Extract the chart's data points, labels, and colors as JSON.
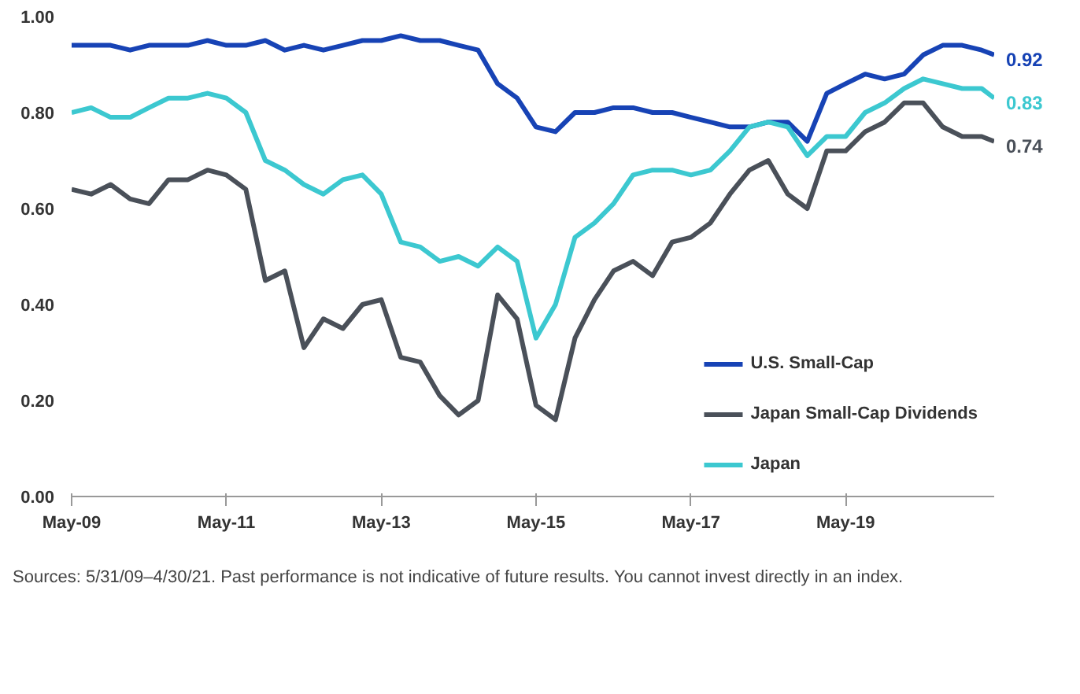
{
  "chart_data": {
    "type": "line",
    "x": [
      "2009-05",
      "2009-08",
      "2009-11",
      "2010-02",
      "2010-05",
      "2010-08",
      "2010-11",
      "2011-02",
      "2011-05",
      "2011-08",
      "2011-11",
      "2012-02",
      "2012-05",
      "2012-08",
      "2012-11",
      "2013-02",
      "2013-05",
      "2013-08",
      "2013-11",
      "2014-02",
      "2014-05",
      "2014-08",
      "2014-11",
      "2015-02",
      "2015-05",
      "2015-08",
      "2015-11",
      "2016-02",
      "2016-05",
      "2016-08",
      "2016-11",
      "2017-02",
      "2017-05",
      "2017-08",
      "2017-11",
      "2018-02",
      "2018-05",
      "2018-08",
      "2018-11",
      "2019-02",
      "2019-05",
      "2019-08",
      "2019-11",
      "2020-02",
      "2020-05",
      "2020-08",
      "2020-11",
      "2021-02",
      "2021-04"
    ],
    "series": [
      {
        "name": "U.S. Small-Cap",
        "color": "#1743b5",
        "values": [
          0.94,
          0.94,
          0.94,
          0.93,
          0.94,
          0.94,
          0.94,
          0.95,
          0.94,
          0.94,
          0.95,
          0.93,
          0.94,
          0.93,
          0.94,
          0.95,
          0.95,
          0.96,
          0.95,
          0.95,
          0.94,
          0.93,
          0.86,
          0.83,
          0.77,
          0.76,
          0.8,
          0.8,
          0.81,
          0.81,
          0.8,
          0.8,
          0.79,
          0.78,
          0.77,
          0.77,
          0.78,
          0.78,
          0.74,
          0.84,
          0.86,
          0.88,
          0.87,
          0.88,
          0.92,
          0.94,
          0.94,
          0.93,
          0.92
        ],
        "value_labels": [
          null,
          null,
          null,
          null,
          null,
          null,
          null,
          null,
          null,
          null,
          null,
          null,
          null,
          null,
          null,
          null,
          null,
          null,
          null,
          null,
          null,
          null,
          null,
          null,
          null,
          null,
          null,
          null,
          null,
          null,
          null,
          null,
          null,
          null,
          null,
          null,
          null,
          null,
          null,
          null,
          null,
          null,
          null,
          null,
          null,
          null,
          null,
          null,
          "0.92"
        ]
      },
      {
        "name": "Japan Small-Cap Dividends",
        "color": "#4a5059",
        "values": [
          0.64,
          0.63,
          0.65,
          0.62,
          0.61,
          0.66,
          0.66,
          0.68,
          0.67,
          0.64,
          0.45,
          0.47,
          0.31,
          0.37,
          0.35,
          0.4,
          0.41,
          0.29,
          0.28,
          0.21,
          0.17,
          0.2,
          0.42,
          0.37,
          0.19,
          0.16,
          0.33,
          0.41,
          0.47,
          0.49,
          0.46,
          0.53,
          0.54,
          0.57,
          0.63,
          0.68,
          0.7,
          0.63,
          0.6,
          0.72,
          0.72,
          0.76,
          0.78,
          0.82,
          0.82,
          0.77,
          0.75,
          0.75,
          0.74
        ],
        "value_labels": [
          null,
          null,
          null,
          null,
          null,
          null,
          null,
          null,
          null,
          null,
          null,
          null,
          null,
          null,
          null,
          null,
          null,
          null,
          null,
          null,
          null,
          null,
          null,
          null,
          null,
          null,
          null,
          null,
          null,
          null,
          null,
          null,
          null,
          null,
          null,
          null,
          null,
          null,
          null,
          null,
          null,
          null,
          null,
          null,
          null,
          null,
          null,
          null,
          "0.74"
        ]
      },
      {
        "name": "Japan",
        "color": "#3cc8d0",
        "values": [
          0.8,
          0.81,
          0.79,
          0.79,
          0.81,
          0.83,
          0.83,
          0.84,
          0.83,
          0.8,
          0.7,
          0.68,
          0.65,
          0.63,
          0.66,
          0.67,
          0.63,
          0.53,
          0.52,
          0.49,
          0.5,
          0.48,
          0.52,
          0.49,
          0.33,
          0.4,
          0.54,
          0.57,
          0.61,
          0.67,
          0.68,
          0.68,
          0.67,
          0.68,
          0.72,
          0.77,
          0.78,
          0.77,
          0.71,
          0.75,
          0.75,
          0.8,
          0.82,
          0.85,
          0.87,
          0.86,
          0.85,
          0.85,
          0.83
        ],
        "value_labels": [
          null,
          null,
          null,
          null,
          null,
          null,
          null,
          null,
          null,
          null,
          null,
          null,
          null,
          null,
          null,
          null,
          null,
          null,
          null,
          null,
          null,
          null,
          null,
          null,
          null,
          null,
          null,
          null,
          null,
          null,
          null,
          null,
          null,
          null,
          null,
          null,
          null,
          null,
          null,
          null,
          null,
          null,
          null,
          null,
          null,
          null,
          null,
          null,
          "0.83"
        ]
      }
    ],
    "xlim": [
      "2009-05",
      "2021-04"
    ],
    "xticks": [
      {
        "value": "2009-05",
        "label": "May-09"
      },
      {
        "value": "2011-05",
        "label": "May-11"
      },
      {
        "value": "2013-05",
        "label": "May-13"
      },
      {
        "value": "2015-05",
        "label": "May-15"
      },
      {
        "value": "2017-05",
        "label": "May-17"
      },
      {
        "value": "2019-05",
        "label": "May-19"
      }
    ],
    "ylim": [
      0,
      1.0
    ],
    "yticks": [
      {
        "value": 0,
        "label": "0.00"
      },
      {
        "value": 0.2,
        "label": "0.20"
      },
      {
        "value": 0.4,
        "label": "0.40"
      },
      {
        "value": 0.6,
        "label": "0.60"
      },
      {
        "value": 0.8,
        "label": "0.80"
      },
      {
        "value": 1.0,
        "label": "1.00"
      }
    ],
    "legend": "bottom right",
    "annotations": [
      "Sources: 5/31/09–4/30/21. Past performance is not indicative of future results. You cannot invest directly in an index."
    ]
  }
}
